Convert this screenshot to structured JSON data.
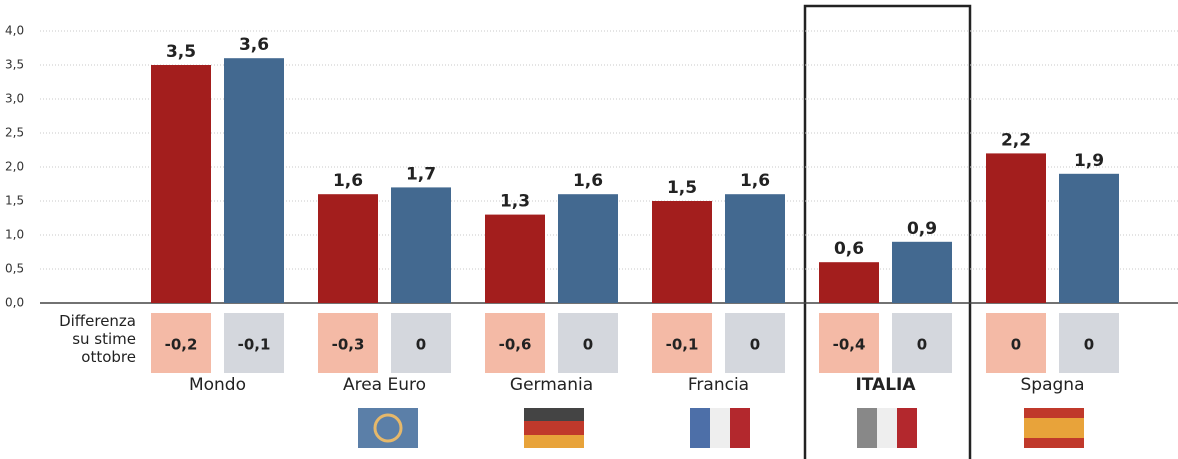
{
  "chart_data": {
    "type": "bar",
    "categories": [
      "Mondo",
      "Area Euro",
      "Germania",
      "Francia",
      "ITALIA",
      "Spagna"
    ],
    "highlight": "ITALIA",
    "series": [
      {
        "color": "#a31e1d",
        "values": [
          3.5,
          1.6,
          1.3,
          1.5,
          0.6,
          2.2
        ],
        "value_labels": [
          "3,5",
          "1,6",
          "1,3",
          "1,5",
          "0,6",
          "2,2"
        ]
      },
      {
        "color": "#436990",
        "values": [
          3.6,
          1.7,
          1.6,
          1.6,
          0.9,
          1.9
        ],
        "value_labels": [
          "3,6",
          "1,7",
          "1,6",
          "1,6",
          "0,9",
          "1,9"
        ]
      }
    ],
    "ylim": [
      0,
      4
    ],
    "yticks": [
      {
        "value": 0,
        "label": "0,0"
      },
      {
        "value": 0.5,
        "label": "0,5"
      },
      {
        "value": 1,
        "label": "1,0"
      },
      {
        "value": 1.5,
        "label": "1,5"
      },
      {
        "value": 2,
        "label": "2,0"
      },
      {
        "value": 2.5,
        "label": "2,5"
      },
      {
        "value": 3,
        "label": "3,0"
      },
      {
        "value": 3.5,
        "label": "3,5"
      },
      {
        "value": 4,
        "label": "4,0"
      }
    ],
    "grid": true,
    "differences": {
      "label": "Differenza su stime ottobre",
      "series": [
        {
          "color": "#f4baa6",
          "values": [
            -0.2,
            -0.3,
            -0.6,
            -0.1,
            -0.4,
            0
          ],
          "value_labels": [
            "-0,2",
            "-0,3",
            "-0,6",
            "-0,1",
            "-0,4",
            "0"
          ]
        },
        {
          "color": "#d4d7dd",
          "values": [
            -0.1,
            0,
            0,
            0,
            0,
            0
          ],
          "value_labels": [
            "-0,1",
            "0",
            "0",
            "0",
            "0",
            "0"
          ]
        }
      ]
    }
  }
}
